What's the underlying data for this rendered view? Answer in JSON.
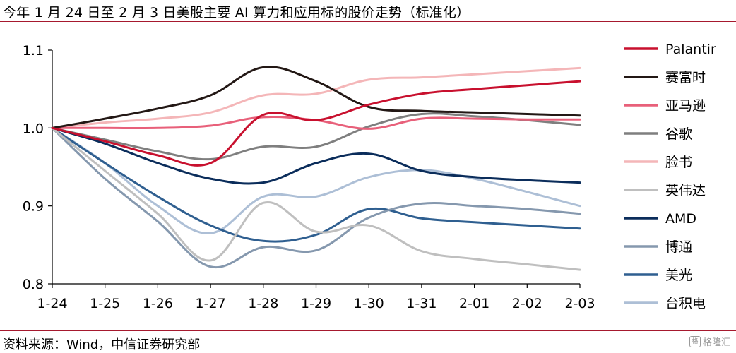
{
  "header": {
    "title": "今年 1 月 24 日至 2 月 3 日美股主要 AI 算力和应用标的股价走势（标准化）"
  },
  "footer": {
    "source": "资料来源：Wind，中信证券研究部"
  },
  "watermark": {
    "icon": "格",
    "text": "格隆汇"
  },
  "chart_data": {
    "type": "line",
    "x": [
      "1-24",
      "1-25",
      "1-26",
      "1-27",
      "1-28",
      "1-29",
      "1-30",
      "1-31",
      "2-01",
      "2-02",
      "2-03"
    ],
    "ylim": [
      0.8,
      1.1
    ],
    "yticks": [
      "0.8",
      "0.9",
      "1.0",
      "1.1"
    ],
    "grid": false,
    "legend_position": "right",
    "series": [
      {
        "name": "Palantir",
        "color": "#c8102e",
        "width": 3,
        "values": [
          1.0,
          0.983,
          0.965,
          0.955,
          1.017,
          1.01,
          1.03,
          1.044,
          1.05,
          1.055,
          1.06
        ]
      },
      {
        "name": "赛富时",
        "color": "#231815",
        "width": 3,
        "values": [
          1.0,
          1.012,
          1.025,
          1.042,
          1.078,
          1.06,
          1.027,
          1.022,
          1.02,
          1.018,
          1.016
        ]
      },
      {
        "name": "亚马逊",
        "color": "#e8607a",
        "width": 3,
        "values": [
          1.0,
          1.0,
          1.0,
          1.003,
          1.014,
          1.01,
          0.999,
          1.012,
          1.012,
          1.011,
          1.011
        ]
      },
      {
        "name": "谷歌",
        "color": "#7f7f7f",
        "width": 3,
        "values": [
          1.0,
          0.985,
          0.97,
          0.96,
          0.976,
          0.976,
          1.002,
          1.018,
          1.015,
          1.01,
          1.004
        ]
      },
      {
        "name": "脸书",
        "color": "#f4b6b8",
        "width": 3,
        "values": [
          1.0,
          1.007,
          1.012,
          1.02,
          1.042,
          1.044,
          1.062,
          1.065,
          1.069,
          1.073,
          1.077
        ]
      },
      {
        "name": "英伟达",
        "color": "#bfbfbf",
        "width": 3,
        "values": [
          1.0,
          0.945,
          0.89,
          0.83,
          0.904,
          0.867,
          0.875,
          0.842,
          0.832,
          0.825,
          0.818
        ]
      },
      {
        "name": "AMD",
        "color": "#0b2d5b",
        "width": 3,
        "values": [
          1.0,
          0.98,
          0.955,
          0.935,
          0.93,
          0.955,
          0.967,
          0.945,
          0.937,
          0.933,
          0.93
        ]
      },
      {
        "name": "博通",
        "color": "#8598ae",
        "width": 3,
        "values": [
          1.0,
          0.935,
          0.88,
          0.822,
          0.847,
          0.843,
          0.885,
          0.903,
          0.9,
          0.896,
          0.89
        ]
      },
      {
        "name": "美光",
        "color": "#2f5f90",
        "width": 3,
        "values": [
          1.0,
          0.955,
          0.912,
          0.875,
          0.855,
          0.863,
          0.896,
          0.884,
          0.879,
          0.875,
          0.871
        ]
      },
      {
        "name": "台积电",
        "color": "#adbfd6",
        "width": 3,
        "values": [
          1.0,
          0.955,
          0.9,
          0.865,
          0.912,
          0.912,
          0.937,
          0.946,
          0.935,
          0.918,
          0.9
        ]
      }
    ]
  }
}
